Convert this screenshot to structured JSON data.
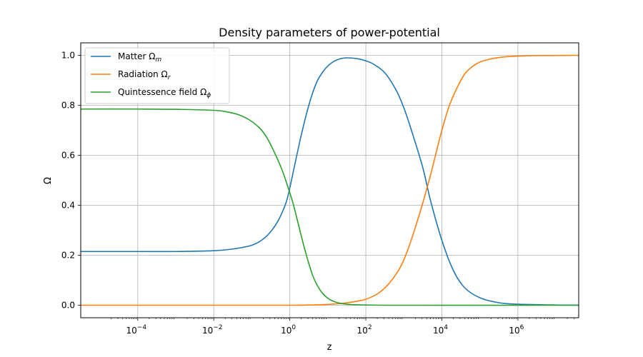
{
  "chart_data": {
    "type": "line",
    "title": "Density parameters of power-potential",
    "xlabel": "z",
    "ylabel": "Ω",
    "xscale": "log",
    "xlim_log10": [
      -5.5,
      7.6
    ],
    "ylim": [
      -0.05,
      1.05
    ],
    "grid": true,
    "legend_position": "upper-left",
    "x_ticks": [
      {
        "exp": -4,
        "base": "10",
        "sup": "−4"
      },
      {
        "exp": -2,
        "base": "10",
        "sup": "−2"
      },
      {
        "exp": 0,
        "base": "10",
        "sup": "0"
      },
      {
        "exp": 2,
        "base": "10",
        "sup": "2"
      },
      {
        "exp": 4,
        "base": "10",
        "sup": "4"
      },
      {
        "exp": 6,
        "base": "10",
        "sup": "6"
      }
    ],
    "y_ticks": [
      {
        "value": 0.0,
        "label": "0.0"
      },
      {
        "value": 0.2,
        "label": "0.2"
      },
      {
        "value": 0.4,
        "label": "0.4"
      },
      {
        "value": 0.6,
        "label": "0.6"
      },
      {
        "value": 0.8,
        "label": "0.8"
      },
      {
        "value": 1.0,
        "label": "1.0"
      }
    ],
    "series": [
      {
        "name": "Matter",
        "symbol": "Ω",
        "subscript": "m",
        "color": "#1f77b4",
        "points": [
          [
            -5.5,
            0.215
          ],
          [
            -4,
            0.215
          ],
          [
            -3,
            0.215
          ],
          [
            -2,
            0.218
          ],
          [
            -1.5,
            0.225
          ],
          [
            -1,
            0.24
          ],
          [
            -0.7,
            0.265
          ],
          [
            -0.5,
            0.295
          ],
          [
            -0.3,
            0.34
          ],
          [
            -0.1,
            0.41
          ],
          [
            0,
            0.47
          ],
          [
            0.1,
            0.54
          ],
          [
            0.3,
            0.68
          ],
          [
            0.5,
            0.8
          ],
          [
            0.7,
            0.89
          ],
          [
            0.9,
            0.94
          ],
          [
            1.1,
            0.97
          ],
          [
            1.3,
            0.985
          ],
          [
            1.5,
            0.99
          ],
          [
            1.8,
            0.986
          ],
          [
            2,
            0.978
          ],
          [
            2.2,
            0.965
          ],
          [
            2.5,
            0.93
          ],
          [
            2.8,
            0.86
          ],
          [
            3,
            0.79
          ],
          [
            3.2,
            0.7
          ],
          [
            3.5,
            0.55
          ],
          [
            3.7,
            0.42
          ],
          [
            4,
            0.26
          ],
          [
            4.3,
            0.14
          ],
          [
            4.6,
            0.07
          ],
          [
            5,
            0.03
          ],
          [
            5.5,
            0.01
          ],
          [
            6,
            0.004
          ],
          [
            7,
            0.001
          ],
          [
            7.6,
            0.0005
          ]
        ]
      },
      {
        "name": "Radiation",
        "symbol": "Ω",
        "subscript": "r",
        "color": "#ff7f0e",
        "points": [
          [
            -5.5,
            0.0
          ],
          [
            -2,
            0.0
          ],
          [
            0,
            0.0
          ],
          [
            0.5,
            0.001
          ],
          [
            1,
            0.003
          ],
          [
            1.5,
            0.01
          ],
          [
            1.8,
            0.017
          ],
          [
            2,
            0.024
          ],
          [
            2.3,
            0.045
          ],
          [
            2.6,
            0.085
          ],
          [
            2.9,
            0.15
          ],
          [
            3.1,
            0.22
          ],
          [
            3.3,
            0.31
          ],
          [
            3.5,
            0.41
          ],
          [
            3.7,
            0.52
          ],
          [
            3.8,
            0.58
          ],
          [
            4,
            0.7
          ],
          [
            4.2,
            0.8
          ],
          [
            4.4,
            0.87
          ],
          [
            4.6,
            0.925
          ],
          [
            4.8,
            0.955
          ],
          [
            5,
            0.973
          ],
          [
            5.3,
            0.986
          ],
          [
            5.6,
            0.993
          ],
          [
            6,
            0.997
          ],
          [
            6.5,
            0.999
          ],
          [
            7.6,
            1.0
          ]
        ]
      },
      {
        "name": "Quintessence field",
        "symbol": "Ω",
        "subscript": "ϕ",
        "color": "#2ca02c",
        "points": [
          [
            -5.5,
            0.785
          ],
          [
            -4,
            0.785
          ],
          [
            -3,
            0.784
          ],
          [
            -2,
            0.78
          ],
          [
            -1.7,
            0.775
          ],
          [
            -1.4,
            0.765
          ],
          [
            -1.1,
            0.745
          ],
          [
            -0.8,
            0.71
          ],
          [
            -0.6,
            0.67
          ],
          [
            -0.4,
            0.61
          ],
          [
            -0.2,
            0.54
          ],
          [
            0,
            0.45
          ],
          [
            0.1,
            0.4
          ],
          [
            0.2,
            0.34
          ],
          [
            0.4,
            0.22
          ],
          [
            0.6,
            0.12
          ],
          [
            0.8,
            0.06
          ],
          [
            1,
            0.028
          ],
          [
            1.2,
            0.013
          ],
          [
            1.4,
            0.006
          ],
          [
            1.7,
            0.002
          ],
          [
            2,
            0.001
          ],
          [
            3,
            0.0
          ],
          [
            7.6,
            0.0
          ]
        ]
      }
    ]
  }
}
